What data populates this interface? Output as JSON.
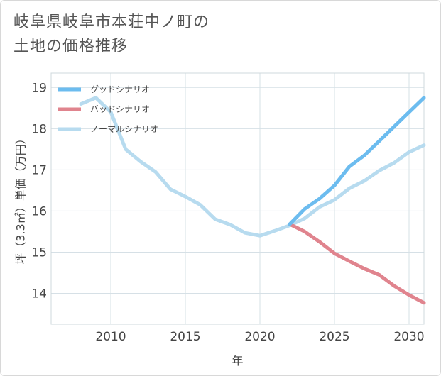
{
  "page": {
    "title_line1": "岐阜県岐阜市本荘中ノ町の",
    "title_line2": "土地の価格推移"
  },
  "chart_data": {
    "type": "line",
    "xlabel": "年",
    "ylabel": "坪（3.3㎡）単価（万円）",
    "xlim": [
      2006,
      2031
    ],
    "ylim": [
      13.25,
      19.35
    ],
    "xticks": [
      2010,
      2015,
      2020,
      2025,
      2030
    ],
    "yticks": [
      14,
      15,
      16,
      17,
      18,
      19
    ],
    "grid": true,
    "legend_position": "top-left",
    "series": [
      {
        "name": "グッドシナリオ",
        "color": "#6cbcef",
        "x": [
          2022,
          2023,
          2024,
          2025,
          2026,
          2027,
          2028,
          2029,
          2030,
          2031
        ],
        "values": [
          15.68,
          16.05,
          16.3,
          16.62,
          17.08,
          17.35,
          17.7,
          18.05,
          18.4,
          18.75
        ]
      },
      {
        "name": "バッドシナリオ",
        "color": "#e0848e",
        "x": [
          2022,
          2023,
          2024,
          2025,
          2026,
          2027,
          2028,
          2029,
          2030,
          2031
        ],
        "values": [
          15.68,
          15.5,
          15.25,
          14.97,
          14.78,
          14.6,
          14.45,
          14.18,
          13.96,
          13.77
        ]
      },
      {
        "name": "ノーマルシナリオ",
        "color": "#b7dbef",
        "x": [
          2008,
          2009,
          2010,
          2011,
          2012,
          2013,
          2014,
          2015,
          2016,
          2017,
          2018,
          2019,
          2020,
          2021,
          2022,
          2023,
          2024,
          2025,
          2026,
          2027,
          2028,
          2029,
          2030,
          2031
        ],
        "values": [
          18.6,
          18.75,
          18.4,
          17.5,
          17.2,
          16.95,
          16.53,
          16.35,
          16.15,
          15.8,
          15.67,
          15.47,
          15.4,
          15.52,
          15.65,
          15.82,
          16.1,
          16.27,
          16.55,
          16.73,
          16.98,
          17.17,
          17.43,
          17.6
        ]
      }
    ]
  }
}
